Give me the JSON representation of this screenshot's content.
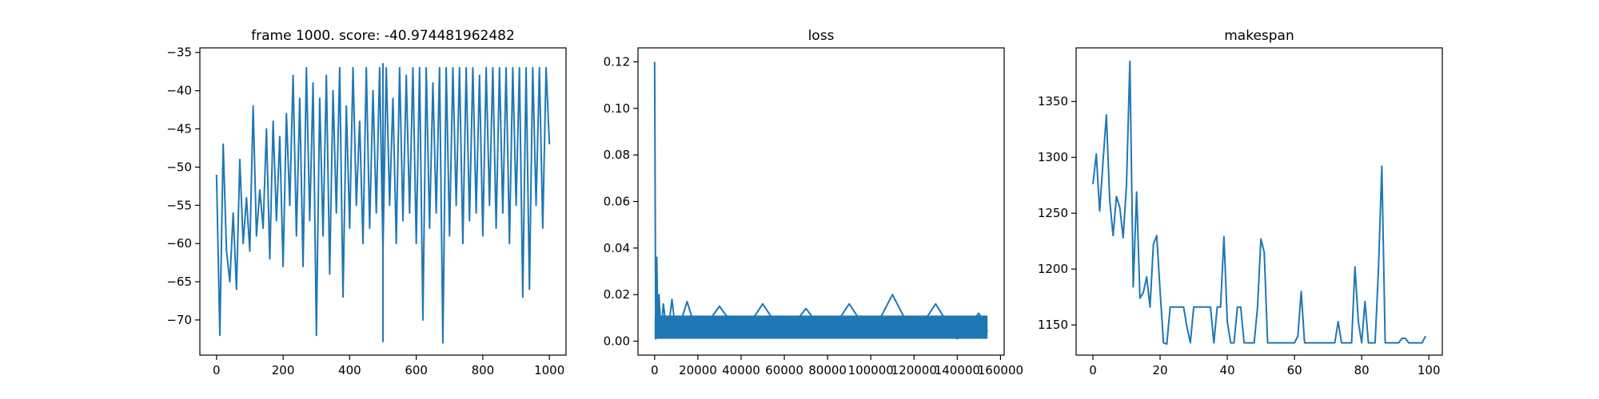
{
  "colors": {
    "series": "#1f77b4"
  },
  "chart_data": [
    {
      "type": "line",
      "title": "frame 1000. score: -40.974481962482",
      "xlabel": "",
      "ylabel": "",
      "xlim": [
        -50,
        1050
      ],
      "ylim": [
        -74.6,
        -34.4
      ],
      "xticks": [
        0,
        200,
        400,
        600,
        800,
        1000
      ],
      "yticks": [
        -70,
        -65,
        -60,
        -55,
        -50,
        -45,
        -40,
        -35
      ],
      "grid": false,
      "series": [
        {
          "x": [
            0,
            10,
            20,
            30,
            40,
            50,
            60,
            70,
            80,
            90,
            100,
            110,
            120,
            130,
            140,
            150,
            160,
            170,
            180,
            190,
            200,
            210,
            220,
            230,
            240,
            250,
            260,
            270,
            280,
            290,
            300,
            310,
            320,
            330,
            340,
            350,
            360,
            370,
            380,
            390,
            400,
            410,
            420,
            430,
            440,
            450,
            460,
            470,
            480,
            490,
            500,
            510,
            520,
            530,
            540,
            550,
            560,
            570,
            580,
            590,
            600,
            610,
            620,
            630,
            640,
            650,
            660,
            670,
            680,
            690,
            700,
            710,
            720,
            730,
            740,
            750,
            760,
            770,
            780,
            790,
            800,
            810,
            820,
            830,
            840,
            850,
            860,
            870,
            880,
            890,
            900,
            910,
            920,
            930,
            940,
            950,
            960,
            970,
            980,
            990,
            1000
          ],
          "values": [
            -51,
            -72,
            -47,
            -61,
            -65,
            -56,
            -66,
            -49,
            -60,
            -54,
            -61,
            -42,
            -59,
            -53,
            -58,
            -45,
            -62,
            -44,
            -57,
            -46,
            -63,
            -43,
            -55,
            -38,
            -59,
            -41,
            -63,
            -37,
            -57,
            -39,
            -72,
            -41,
            -59,
            -38,
            -64,
            -40,
            -56,
            -37,
            -67,
            -42,
            -58,
            -37,
            -55,
            -44,
            -60,
            -37,
            -58,
            -40,
            -56,
            -37,
            -61,
            -37,
            -55,
            -41,
            -60,
            -37,
            -57,
            -38,
            -56,
            -37,
            -60,
            -37,
            -70,
            -37,
            -58,
            -39,
            -56,
            -37,
            -73,
            -37,
            -59,
            -37,
            -55,
            -37,
            -60,
            -37,
            -57,
            -37,
            -56,
            -38,
            -59,
            -37,
            -55,
            -37,
            -58,
            -37,
            -56,
            -37,
            -60,
            -37,
            -55,
            -37,
            -67,
            -37,
            -66,
            -37,
            -55,
            -37,
            -58,
            -37,
            -47
          ],
          "extremes": {
            "max": -36.4,
            "min": -72.9
          }
        }
      ]
    },
    {
      "type": "line",
      "title": "loss",
      "xlabel": "",
      "ylabel": "",
      "xlim": [
        -7700,
        161700
      ],
      "ylim": [
        -0.006,
        0.126
      ],
      "xticks": [
        0,
        20000,
        40000,
        60000,
        80000,
        100000,
        120000,
        140000,
        160000
      ],
      "yticks": [
        0.0,
        0.02,
        0.04,
        0.06,
        0.08,
        0.1,
        0.12
      ],
      "ytick_decimals": 2,
      "grid": false,
      "series": [
        {
          "x": [
            0,
            500,
            1000,
            1500,
            2000,
            3000,
            4000,
            6000,
            8000,
            10000,
            15000,
            20000,
            30000,
            40000,
            50000,
            60000,
            70000,
            80000,
            90000,
            100000,
            110000,
            120000,
            130000,
            140000,
            150000,
            154000
          ],
          "values": [
            0.12,
            0.001,
            0.036,
            0.002,
            0.02,
            0.003,
            0.016,
            0.002,
            0.018,
            0.002,
            0.017,
            0.002,
            0.015,
            0.002,
            0.016,
            0.002,
            0.014,
            0.002,
            0.016,
            0.002,
            0.02,
            0.002,
            0.016,
            0.001,
            0.012,
            0.004
          ],
          "band": {
            "low": 0.001,
            "high": 0.011,
            "until": 154000
          }
        }
      ]
    },
    {
      "type": "line",
      "title": "makespan",
      "xlabel": "",
      "ylabel": "",
      "xlim": [
        -5,
        104
      ],
      "ylim": [
        1123,
        1398
      ],
      "xticks": [
        0,
        20,
        40,
        60,
        80,
        100
      ],
      "yticks": [
        1150,
        1200,
        1250,
        1300,
        1350
      ],
      "grid": false,
      "series": [
        {
          "x": [
            0,
            1,
            2,
            3,
            4,
            5,
            6,
            7,
            8,
            9,
            10,
            11,
            12,
            13,
            14,
            15,
            16,
            17,
            18,
            19,
            20,
            21,
            22,
            23,
            24,
            25,
            26,
            27,
            28,
            29,
            30,
            31,
            32,
            33,
            34,
            35,
            36,
            37,
            38,
            39,
            40,
            41,
            42,
            43,
            44,
            45,
            46,
            47,
            48,
            49,
            50,
            51,
            52,
            53,
            54,
            55,
            56,
            57,
            58,
            59,
            60,
            61,
            62,
            63,
            64,
            65,
            66,
            67,
            68,
            69,
            70,
            71,
            72,
            73,
            74,
            75,
            76,
            77,
            78,
            79,
            80,
            81,
            82,
            83,
            84,
            85,
            86,
            87,
            88,
            89,
            90,
            91,
            92,
            93,
            94,
            95,
            96,
            97,
            98,
            99
          ],
          "values": [
            1276,
            1303,
            1252,
            1296,
            1338,
            1262,
            1230,
            1265,
            1255,
            1228,
            1276,
            1386,
            1184,
            1269,
            1174,
            1179,
            1193,
            1166,
            1222,
            1230,
            1180,
            1134,
            1133,
            1166,
            1166,
            1166,
            1166,
            1166,
            1148,
            1134,
            1166,
            1166,
            1166,
            1166,
            1166,
            1166,
            1134,
            1166,
            1166,
            1229,
            1153,
            1134,
            1134,
            1166,
            1166,
            1134,
            1134,
            1134,
            1134,
            1166,
            1227,
            1215,
            1134,
            1134,
            1134,
            1134,
            1134,
            1134,
            1134,
            1134,
            1134,
            1140,
            1180,
            1134,
            1134,
            1134,
            1134,
            1134,
            1134,
            1134,
            1134,
            1134,
            1134,
            1153,
            1134,
            1134,
            1134,
            1134,
            1202,
            1153,
            1134,
            1171,
            1134,
            1134,
            1134,
            1200,
            1292,
            1134,
            1134,
            1134,
            1134,
            1134,
            1138,
            1138,
            1134,
            1134,
            1134,
            1134,
            1134,
            1140
          ]
        }
      ]
    }
  ]
}
